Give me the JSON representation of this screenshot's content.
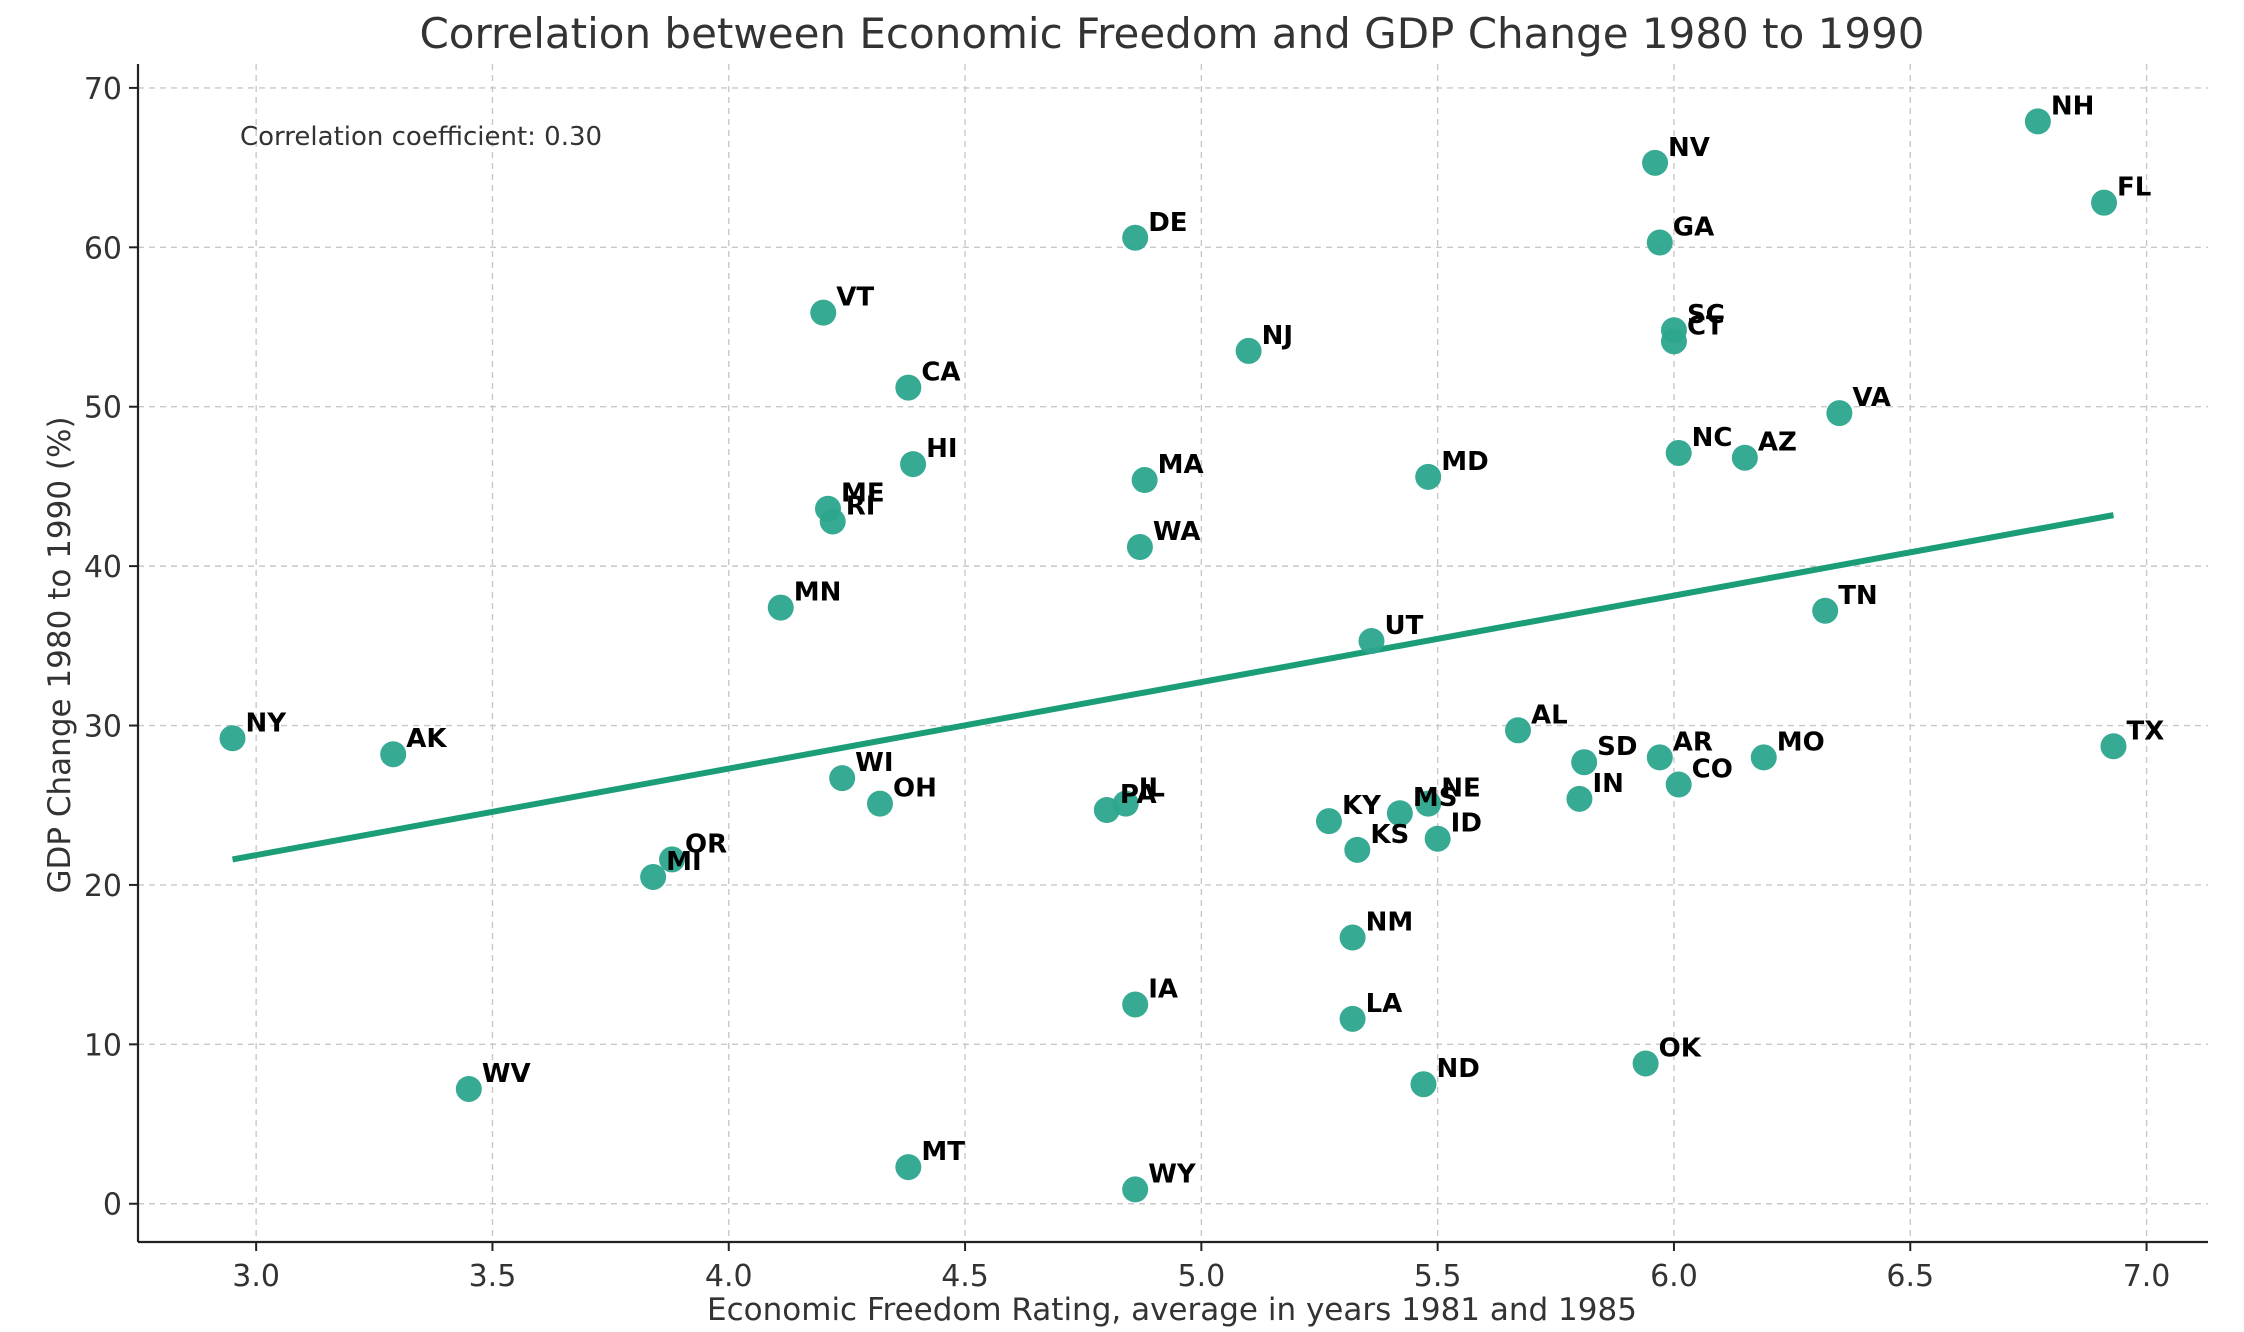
{
  "chart_data": {
    "type": "scatter",
    "title": "Correlation between Economic Freedom and GDP Change 1980 to 1990",
    "xlabel": "Economic Freedom Rating, average in years 1981 and 1985",
    "ylabel": "GDP Change 1980 to 1990 (%)",
    "annotation": "Correlation coefficient: 0.30",
    "xlim": [
      2.75,
      7.13
    ],
    "ylim": [
      -2.4,
      71.5
    ],
    "xticks": [
      3.0,
      3.5,
      4.0,
      4.5,
      5.0,
      5.5,
      6.0,
      6.5,
      7.0
    ],
    "xtick_labels": [
      "3.0",
      "3.5",
      "4.0",
      "4.5",
      "5.0",
      "5.5",
      "6.0",
      "6.5",
      "7.0"
    ],
    "yticks": [
      0,
      10,
      20,
      30,
      40,
      50,
      60,
      70
    ],
    "ytick_labels": [
      "0",
      "10",
      "20",
      "30",
      "40",
      "50",
      "60",
      "70"
    ],
    "grid": true,
    "point_color": "#2ca58d",
    "trend_color": "#1b9e77",
    "trendline": {
      "x": [
        2.95,
        6.93
      ],
      "y": [
        21.6,
        43.2
      ]
    },
    "points": [
      {
        "label": "NH",
        "x": 6.77,
        "y": 67.9
      },
      {
        "label": "NV",
        "x": 5.96,
        "y": 65.3
      },
      {
        "label": "FL",
        "x": 6.91,
        "y": 62.8
      },
      {
        "label": "DE",
        "x": 4.86,
        "y": 60.6
      },
      {
        "label": "GA",
        "x": 5.97,
        "y": 60.3
      },
      {
        "label": "VT",
        "x": 4.2,
        "y": 55.9
      },
      {
        "label": "SC",
        "x": 6.0,
        "y": 54.8
      },
      {
        "label": "CT",
        "x": 6.0,
        "y": 54.1
      },
      {
        "label": "NJ",
        "x": 5.1,
        "y": 53.5
      },
      {
        "label": "CA",
        "x": 4.38,
        "y": 51.2
      },
      {
        "label": "VA",
        "x": 6.35,
        "y": 49.6
      },
      {
        "label": "NC",
        "x": 6.01,
        "y": 47.1
      },
      {
        "label": "AZ",
        "x": 6.15,
        "y": 46.8
      },
      {
        "label": "HI",
        "x": 4.39,
        "y": 46.4
      },
      {
        "label": "MA",
        "x": 4.88,
        "y": 45.4
      },
      {
        "label": "MD",
        "x": 5.48,
        "y": 45.6
      },
      {
        "label": "ME",
        "x": 4.21,
        "y": 43.6
      },
      {
        "label": "RI",
        "x": 4.22,
        "y": 42.8
      },
      {
        "label": "WA",
        "x": 4.87,
        "y": 41.2
      },
      {
        "label": "MN",
        "x": 4.11,
        "y": 37.4
      },
      {
        "label": "TN",
        "x": 6.32,
        "y": 37.2
      },
      {
        "label": "UT",
        "x": 5.36,
        "y": 35.3
      },
      {
        "label": "AL",
        "x": 5.67,
        "y": 29.7
      },
      {
        "label": "NY",
        "x": 2.95,
        "y": 29.2
      },
      {
        "label": "TX",
        "x": 6.93,
        "y": 28.7
      },
      {
        "label": "AK",
        "x": 3.29,
        "y": 28.2
      },
      {
        "label": "AR",
        "x": 5.97,
        "y": 28.0
      },
      {
        "label": "MO",
        "x": 6.19,
        "y": 28.0
      },
      {
        "label": "SD",
        "x": 5.81,
        "y": 27.7
      },
      {
        "label": "WI",
        "x": 4.24,
        "y": 26.7
      },
      {
        "label": "CO",
        "x": 6.01,
        "y": 26.3
      },
      {
        "label": "IN",
        "x": 5.8,
        "y": 25.4
      },
      {
        "label": "OH",
        "x": 4.32,
        "y": 25.1
      },
      {
        "label": "IL",
        "x": 4.84,
        "y": 25.1
      },
      {
        "label": "NE",
        "x": 5.48,
        "y": 25.1
      },
      {
        "label": "PA",
        "x": 4.8,
        "y": 24.7
      },
      {
        "label": "MS",
        "x": 5.42,
        "y": 24.5
      },
      {
        "label": "KY",
        "x": 5.27,
        "y": 24.0
      },
      {
        "label": "ID",
        "x": 5.5,
        "y": 22.9
      },
      {
        "label": "KS",
        "x": 5.33,
        "y": 22.2
      },
      {
        "label": "OR",
        "x": 3.88,
        "y": 21.6
      },
      {
        "label": "MI",
        "x": 3.84,
        "y": 20.5
      },
      {
        "label": "NM",
        "x": 5.32,
        "y": 16.7
      },
      {
        "label": "IA",
        "x": 4.86,
        "y": 12.5
      },
      {
        "label": "LA",
        "x": 5.32,
        "y": 11.6
      },
      {
        "label": "OK",
        "x": 5.94,
        "y": 8.8
      },
      {
        "label": "ND",
        "x": 5.47,
        "y": 7.5
      },
      {
        "label": "WV",
        "x": 3.45,
        "y": 7.2
      },
      {
        "label": "MT",
        "x": 4.38,
        "y": 2.3
      },
      {
        "label": "WY",
        "x": 4.86,
        "y": 0.9
      }
    ]
  }
}
